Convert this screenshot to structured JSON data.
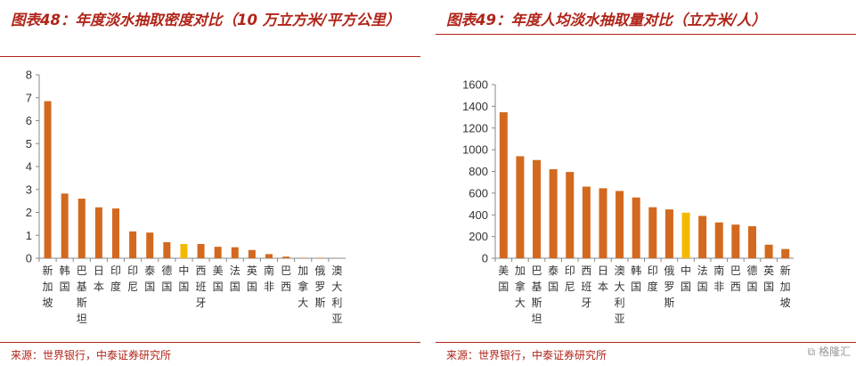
{
  "chart_data": [
    {
      "type": "bar",
      "title": "图表48：年度淡水抽取密度对比（10 万立方米/平方公里）",
      "source": "来源：世界银行，中泰证券研究所",
      "categories": [
        "新加坡",
        "韩国",
        "巴基斯坦",
        "日本",
        "印度",
        "印尼",
        "泰国",
        "德国",
        "中国",
        "西班牙",
        "美国",
        "法国",
        "英国",
        "南非",
        "巴西",
        "加拿大",
        "俄罗斯",
        "澳大利亚"
      ],
      "values": [
        6.85,
        2.82,
        2.6,
        2.22,
        2.17,
        1.17,
        1.12,
        0.7,
        0.62,
        0.62,
        0.5,
        0.48,
        0.36,
        0.18,
        0.07,
        0.02,
        0.02,
        0.01
      ],
      "highlight": "中国",
      "ylim": [
        0,
        8
      ],
      "yticks": [
        0,
        1,
        2,
        3,
        4,
        5,
        6,
        7,
        8
      ],
      "grid": false,
      "colors": {
        "bar": "#d2691e",
        "highlight": "#f5b800"
      }
    },
    {
      "type": "bar",
      "title": "图表49：年度人均淡水抽取量对比（立方米/人）",
      "source": "来源：世界银行，中泰证券研究所",
      "categories": [
        "美国",
        "加拿大",
        "巴基斯坦",
        "泰国",
        "印尼",
        "西班牙",
        "日本",
        "澳大利亚",
        "韩国",
        "印度",
        "俄罗斯",
        "中国",
        "法国",
        "南非",
        "巴西",
        "德国",
        "英国",
        "新加坡"
      ],
      "values": [
        1345,
        940,
        905,
        820,
        795,
        660,
        645,
        620,
        560,
        470,
        450,
        420,
        390,
        330,
        310,
        295,
        125,
        85
      ],
      "highlight": "中国",
      "ylim": [
        0,
        1600
      ],
      "yticks": [
        0,
        200,
        400,
        600,
        800,
        1000,
        1200,
        1400,
        1600
      ],
      "grid": false,
      "colors": {
        "bar": "#d2691e",
        "highlight": "#f5b800"
      }
    }
  ],
  "watermark": "格隆汇"
}
